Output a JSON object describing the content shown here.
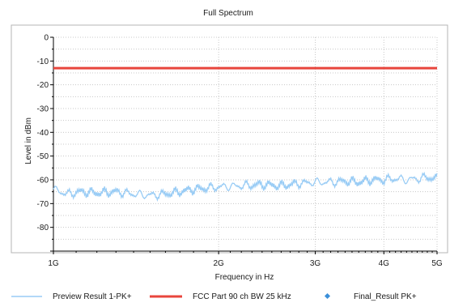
{
  "chart_data": {
    "type": "line",
    "title": "Full Spectrum",
    "xlabel": "Frequency in Hz",
    "ylabel": "Level in dBm",
    "x_scale": "log",
    "xlim": [
      1000000000,
      5000000000
    ],
    "ylim": [
      -90,
      0
    ],
    "x_ticks": [
      {
        "value": 1000000000,
        "label": "1G"
      },
      {
        "value": 2000000000,
        "label": "2G"
      },
      {
        "value": 3000000000,
        "label": "3G"
      },
      {
        "value": 4000000000,
        "label": "4G"
      },
      {
        "value": 5000000000,
        "label": "5G"
      }
    ],
    "y_ticks": [
      {
        "value": 0,
        "label": "0"
      },
      {
        "value": -10,
        "label": "-10"
      },
      {
        "value": -20,
        "label": "-20"
      },
      {
        "value": -30,
        "label": "-30"
      },
      {
        "value": -40,
        "label": "-40"
      },
      {
        "value": -50,
        "label": "-50"
      },
      {
        "value": -60,
        "label": "-60"
      },
      {
        "value": -70,
        "label": "-70"
      },
      {
        "value": -80,
        "label": "-80"
      }
    ],
    "grid": true,
    "legend_position": "bottom",
    "series": [
      {
        "name": "Preview Result 1-PK+",
        "kind": "line",
        "color": "#99ccf5",
        "x": [
          1000000000,
          1060000000,
          1120000000,
          1200000000,
          1300000000,
          1400000000,
          1500000000,
          1600000000,
          1700000000,
          1800000000,
          1900000000,
          2000000000,
          2200000000,
          2400000000,
          2600000000,
          2800000000,
          3000000000,
          3200000000,
          3400000000,
          3600000000,
          3800000000,
          4000000000,
          4200000000,
          4400000000,
          4600000000,
          4800000000,
          5000000000
        ],
        "values": [
          -64,
          -66,
          -65,
          -65.5,
          -65,
          -66,
          -66.5,
          -66,
          -65,
          -64,
          -63.5,
          -63,
          -62.5,
          -62,
          -62.5,
          -61.5,
          -61,
          -61,
          -60.5,
          -61,
          -60,
          -60,
          -59.5,
          -60,
          -59.5,
          -59,
          -59.5
        ]
      },
      {
        "name": "FCC Part 90 ch BW 25 kHz",
        "kind": "line",
        "color": "#e8453c",
        "x": [
          1000000000,
          5000000000
        ],
        "values": [
          -13,
          -13
        ]
      },
      {
        "name": "Final_Result PK+",
        "kind": "marker",
        "color": "#3b8fd9",
        "x": [],
        "values": []
      }
    ]
  }
}
